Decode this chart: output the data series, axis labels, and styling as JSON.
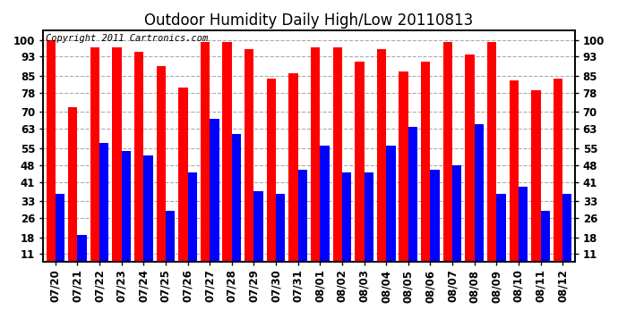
{
  "title": "Outdoor Humidity Daily High/Low 20110813",
  "copyright_text": "Copyright 2011 Cartronics.com",
  "dates": [
    "07/20",
    "07/21",
    "07/22",
    "07/23",
    "07/24",
    "07/25",
    "07/26",
    "07/27",
    "07/28",
    "07/29",
    "07/30",
    "07/31",
    "08/01",
    "08/02",
    "08/03",
    "08/04",
    "08/05",
    "08/06",
    "08/07",
    "08/08",
    "08/09",
    "08/10",
    "08/11",
    "08/12"
  ],
  "highs": [
    100,
    72,
    97,
    97,
    95,
    89,
    80,
    99,
    99,
    96,
    84,
    86,
    97,
    97,
    91,
    96,
    87,
    91,
    99,
    94,
    99,
    83,
    79,
    84
  ],
  "lows": [
    36,
    19,
    57,
    54,
    52,
    29,
    45,
    67,
    61,
    37,
    36,
    46,
    56,
    45,
    45,
    56,
    64,
    46,
    48,
    65,
    36,
    39,
    29,
    36
  ],
  "high_color": "#FF0000",
  "low_color": "#0000FF",
  "background_color": "#FFFFFF",
  "grid_color": "#AAAAAA",
  "yticks": [
    11,
    18,
    26,
    33,
    41,
    48,
    55,
    63,
    70,
    78,
    85,
    93,
    100
  ],
  "ylim": [
    8,
    104
  ],
  "bar_width": 0.42,
  "title_fontsize": 12,
  "tick_fontsize": 8.5,
  "copyright_fontsize": 7.5
}
